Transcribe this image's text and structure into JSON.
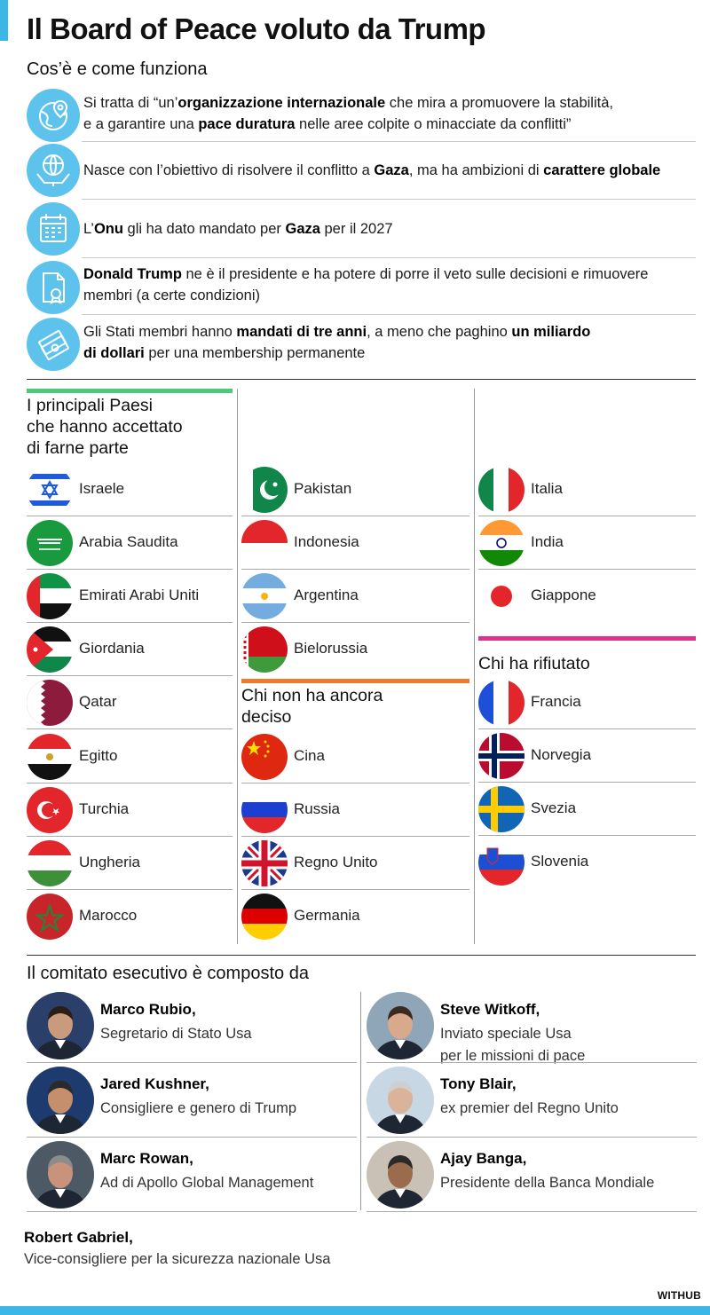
{
  "title": "Il Board of Peace voluto da Trump",
  "subtitle": "Cos’è e come funziona",
  "info": [
    {
      "icon": "globe-pin-icon",
      "lines": [
        [
          {
            "t": "Si tratta di “un’"
          },
          {
            "t": "organizzazione internazionale",
            "b": true
          },
          {
            "t": " che mira a promuovere la stabilità,"
          }
        ],
        [
          {
            "t": "e a garantire una "
          },
          {
            "t": "pace duratura",
            "b": true
          },
          {
            "t": " nelle aree colpite o minacciate da conflitti”"
          }
        ]
      ]
    },
    {
      "icon": "hands-globe-icon",
      "lines": [
        [
          {
            "t": "Nasce con l’obiettivo di risolvere il conflitto a "
          },
          {
            "t": "Gaza",
            "b": true
          },
          {
            "t": ", ma ha ambizioni di "
          },
          {
            "t": "carattere globale",
            "b": true
          }
        ]
      ]
    },
    {
      "icon": "calendar-icon",
      "lines": [
        [
          {
            "t": "L’"
          },
          {
            "t": "Onu",
            "b": true
          },
          {
            "t": " gli ha dato mandato per "
          },
          {
            "t": "Gaza",
            "b": true
          },
          {
            "t": " per il 2027"
          }
        ]
      ]
    },
    {
      "icon": "document-seal-icon",
      "lines": [
        [
          {
            "t": "Donald Trump",
            "b": true
          },
          {
            "t": " ne è il presidente e ha potere di porre il veto sulle decisioni e rimuovere"
          }
        ],
        [
          {
            "t": "membri (a certe condizioni)"
          }
        ]
      ]
    },
    {
      "icon": "money-icon",
      "lines": [
        [
          {
            "t": "Gli Stati membri hanno "
          },
          {
            "t": "mandati di tre anni",
            "b": true
          },
          {
            "t": ", a meno che paghino "
          },
          {
            "t": "un miliardo",
            "b": true
          }
        ],
        [
          {
            "t": "di dollari",
            "b": true
          },
          {
            "t": " per una membership permanente"
          }
        ]
      ]
    }
  ],
  "accepted": {
    "heading_lines": [
      "I principali Paesi",
      "che hanno accettato",
      "di farne parte"
    ],
    "color": "#4cc97a",
    "col1": [
      "Israele",
      "Arabia Saudita",
      "Emirati Arabi Uniti",
      "Giordania",
      "Qatar",
      "Egitto",
      "Turchia",
      "Ungheria",
      "Marocco"
    ],
    "col2": [
      "Pakistan",
      "Indonesia",
      "Argentina",
      "Bielorussia"
    ],
    "col3": [
      "Italia",
      "India",
      "Giappone"
    ]
  },
  "undecided": {
    "heading_lines": [
      "Chi non ha ancora",
      "deciso"
    ],
    "color": "#f07a2a",
    "items": [
      "Cina",
      "Russia",
      "Regno Unito",
      "Germania"
    ]
  },
  "refused": {
    "heading": "Chi ha rifiutato",
    "color": "#e0318f",
    "items": [
      "Francia",
      "Norvegia",
      "Svezia",
      "Slovenia"
    ]
  },
  "committee": {
    "heading": "Il comitato esecutivo è composto da",
    "members": [
      {
        "name": "Marco Rubio,",
        "role": [
          "Segretario di Stato Usa"
        ]
      },
      {
        "name": "Steve Witkoff,",
        "role": [
          "Inviato speciale Usa",
          "per le missioni di pace"
        ]
      },
      {
        "name": "Jared Kushner,",
        "role": [
          "Consigliere e genero di Trump"
        ]
      },
      {
        "name": "Tony Blair,",
        "role": [
          "ex premier del Regno Unito"
        ]
      },
      {
        "name": "Marc Rowan,",
        "role": [
          "Ad di Apollo Global Management"
        ]
      },
      {
        "name": "Ajay Banga,",
        "role": [
          "Presidente della Banca Mondiale"
        ]
      }
    ],
    "extra": {
      "name": "Robert Gabriel,",
      "role": "Vice-consigliere per la sicurezza nazionale Usa"
    }
  },
  "brand": "WITHUB",
  "colors": {
    "accent": "#3bb6e6",
    "icon_bg": "#5ec3ec"
  }
}
